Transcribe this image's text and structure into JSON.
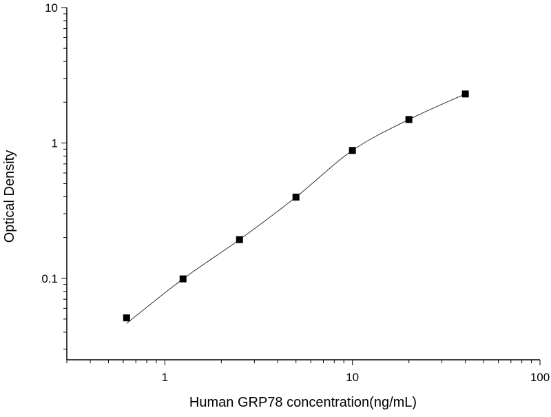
{
  "chart_data": {
    "type": "scatter",
    "title": "",
    "xlabel": "Human GRP78 concentration(ng/mL)",
    "ylabel": "Optical Density",
    "xscale": "log",
    "yscale": "log",
    "xlim": [
      0.3,
      100
    ],
    "ylim": [
      0.025,
      10
    ],
    "x_ticks": [
      {
        "value": 1,
        "label": "1"
      },
      {
        "value": 10,
        "label": "10"
      },
      {
        "value": 100,
        "label": "100"
      }
    ],
    "y_ticks": [
      {
        "value": 0.1,
        "label": "0.1"
      },
      {
        "value": 1,
        "label": "1"
      },
      {
        "value": 10,
        "label": "10"
      }
    ],
    "grid": false,
    "legend": "none",
    "marker": "square",
    "color": "#000000",
    "fit_line": true,
    "x": [
      0.625,
      1.25,
      2.5,
      5,
      10,
      20,
      40
    ],
    "y": [
      0.051,
      0.099,
      0.193,
      0.398,
      0.88,
      1.49,
      2.3
    ]
  }
}
